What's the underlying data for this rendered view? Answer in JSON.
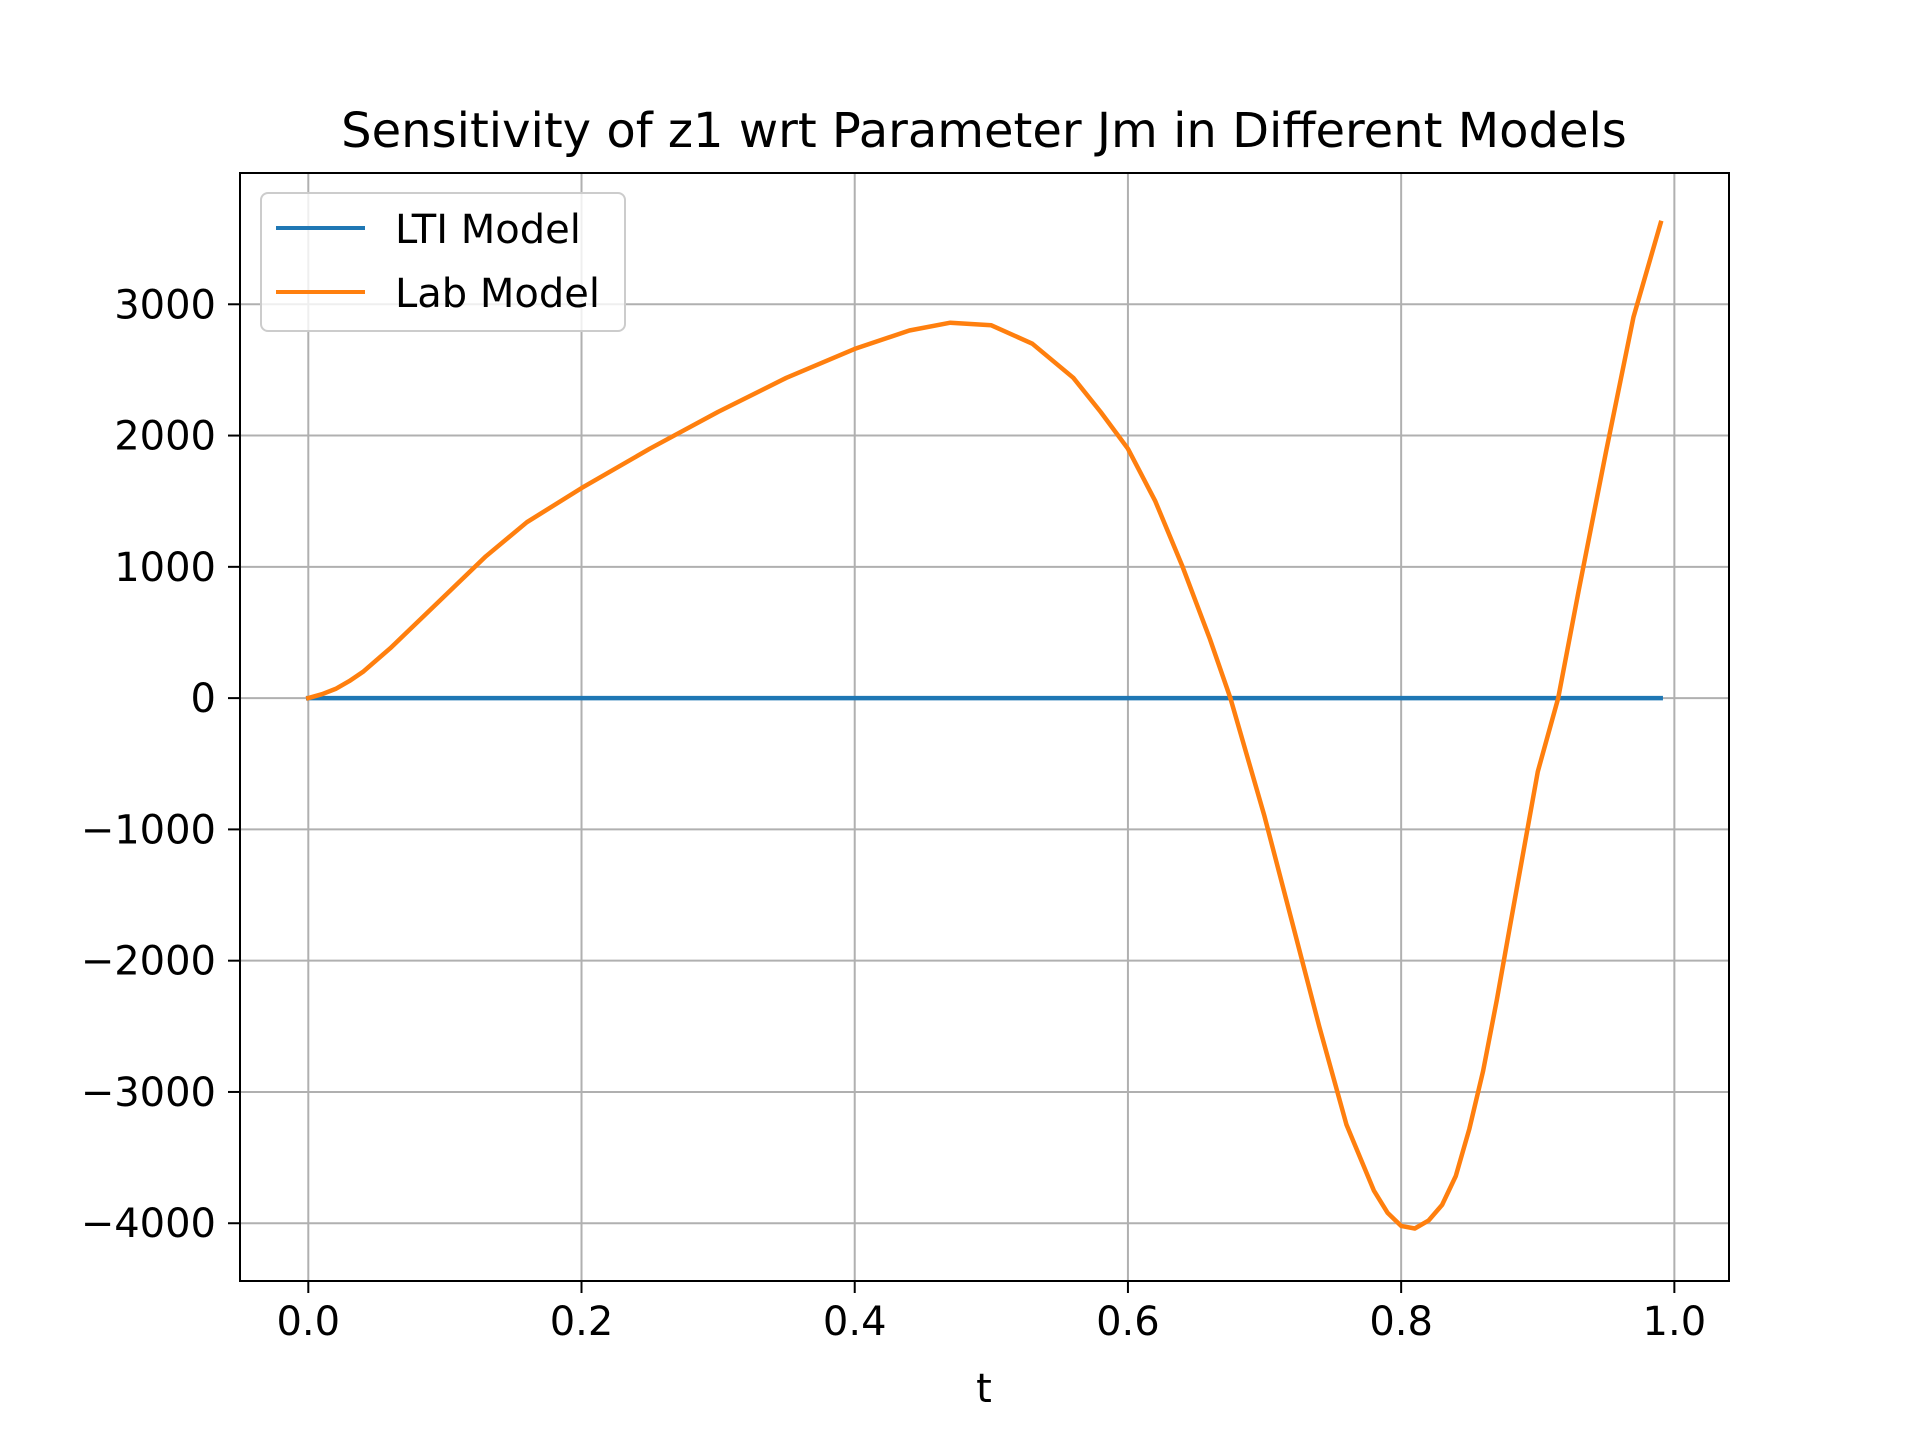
{
  "chart_data": {
    "type": "line",
    "title": "Sensitivity of z1 wrt Parameter Jm in Different Models",
    "xlabel": "t",
    "ylabel": "",
    "xlim": [
      -0.05,
      1.04
    ],
    "ylim": [
      -4440,
      4000
    ],
    "grid": true,
    "legend_position": "top-left",
    "x_ticks": [
      0.0,
      0.2,
      0.4,
      0.6,
      0.8,
      1.0
    ],
    "x_tick_labels": [
      "0.0",
      "0.2",
      "0.4",
      "0.6",
      "0.8",
      "1.0"
    ],
    "y_ticks": [
      -4000,
      -3000,
      -2000,
      -1000,
      0,
      1000,
      2000,
      3000
    ],
    "y_tick_labels": [
      "−4000",
      "−3000",
      "−2000",
      "−1000",
      "0",
      "1000",
      "2000",
      "3000"
    ],
    "series": [
      {
        "name": "LTI Model",
        "color": "#1f77b4",
        "x": [
          0.0,
          0.99
        ],
        "y": [
          0,
          0
        ]
      },
      {
        "name": "Lab Model",
        "color": "#ff7f0e",
        "x": [
          0.0,
          0.01,
          0.02,
          0.03,
          0.04,
          0.06,
          0.08,
          0.1,
          0.13,
          0.16,
          0.2,
          0.25,
          0.3,
          0.35,
          0.4,
          0.44,
          0.47,
          0.5,
          0.53,
          0.56,
          0.58,
          0.6,
          0.62,
          0.64,
          0.66,
          0.675,
          0.7,
          0.72,
          0.74,
          0.76,
          0.78,
          0.79,
          0.8,
          0.81,
          0.82,
          0.83,
          0.84,
          0.85,
          0.86,
          0.87,
          0.88,
          0.9,
          0.915,
          0.93,
          0.95,
          0.97,
          0.99
        ],
        "y": [
          0,
          30,
          70,
          130,
          200,
          380,
          580,
          780,
          1080,
          1340,
          1600,
          1900,
          2180,
          2440,
          2660,
          2800,
          2860,
          2840,
          2700,
          2440,
          2180,
          1900,
          1500,
          1000,
          450,
          0,
          -900,
          -1700,
          -2500,
          -3250,
          -3750,
          -3920,
          -4020,
          -4040,
          -3980,
          -3860,
          -3640,
          -3280,
          -2840,
          -2300,
          -1720,
          -560,
          0,
          820,
          1880,
          2900,
          3620
        ]
      }
    ]
  }
}
